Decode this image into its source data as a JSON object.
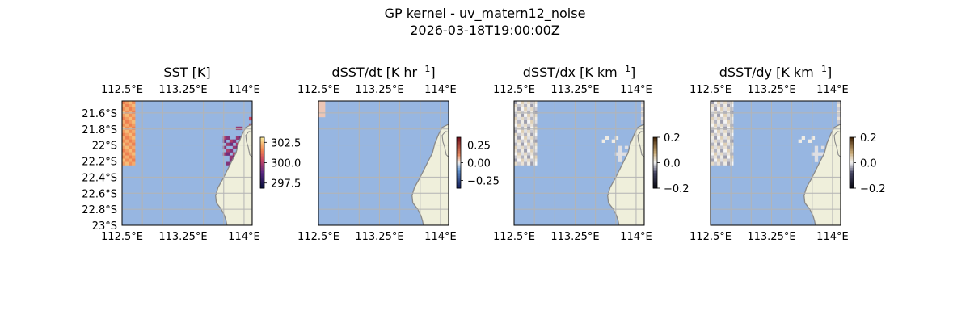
{
  "figure": {
    "title_line1": "GP kernel - uv_matern12_noise",
    "title_line2": "2026-03-18T19:00:00Z"
  },
  "colors": {
    "ocean": "#97b6e1",
    "land": "#efefdb",
    "coast": "#8a8a8a",
    "grid": "#b4b4b4",
    "sst_warm": "#f08a5c",
    "sst_hot": "#d96a62"
  },
  "chart_data": [
    {
      "type": "heatmap",
      "title": "SST [K]",
      "x_ticks": [
        "112.5°E",
        "113.25°E",
        "114°E"
      ],
      "y_ticks": [
        "21.6°S",
        "21.8°S",
        "22°S",
        "22.2°S",
        "22.4°S",
        "22.6°S",
        "22.8°S",
        "23°S"
      ],
      "xlim": [
        112.5,
        114.1
      ],
      "ylim": [
        -23.0,
        -21.45
      ],
      "colorbar": {
        "ticks": [
          "302.5",
          "300.0",
          "297.5"
        ],
        "range": [
          296.9,
          303.5
        ],
        "colormap": "thermal"
      },
      "field": "sst"
    },
    {
      "type": "heatmap",
      "title": "dSST/dt [K hr⁻¹]",
      "x_ticks": [
        "112.5°E",
        "113.25°E",
        "114°E"
      ],
      "xlim": [
        112.5,
        114.1
      ],
      "ylim": [
        -23.0,
        -21.45
      ],
      "colorbar": {
        "ticks": [
          "0.25",
          "0.00",
          "−0.25"
        ],
        "range": [
          -0.4,
          0.4
        ],
        "colormap": "balance"
      },
      "field": "dsst_dt"
    },
    {
      "type": "heatmap",
      "title": "dSST/dx [K km⁻¹]",
      "x_ticks": [
        "112.5°E",
        "113.25°E",
        "114°E"
      ],
      "xlim": [
        112.5,
        114.1
      ],
      "ylim": [
        -23.0,
        -21.45
      ],
      "colorbar": {
        "ticks": [
          "0.2",
          "0.0",
          "−0.2"
        ],
        "range": [
          -0.2,
          0.2
        ],
        "colormap": "diff"
      },
      "field": "dsst_dx"
    },
    {
      "type": "heatmap",
      "title": "dSST/dy [K km⁻¹]",
      "x_ticks": [
        "112.5°E",
        "113.25°E",
        "114°E"
      ],
      "xlim": [
        112.5,
        114.1
      ],
      "ylim": [
        -23.0,
        -21.45
      ],
      "colorbar": {
        "ticks": [
          "0.2",
          "0.0",
          "−0.2"
        ],
        "range": [
          -0.2,
          0.2
        ],
        "colormap": "diff"
      },
      "field": "dsst_dy"
    }
  ]
}
